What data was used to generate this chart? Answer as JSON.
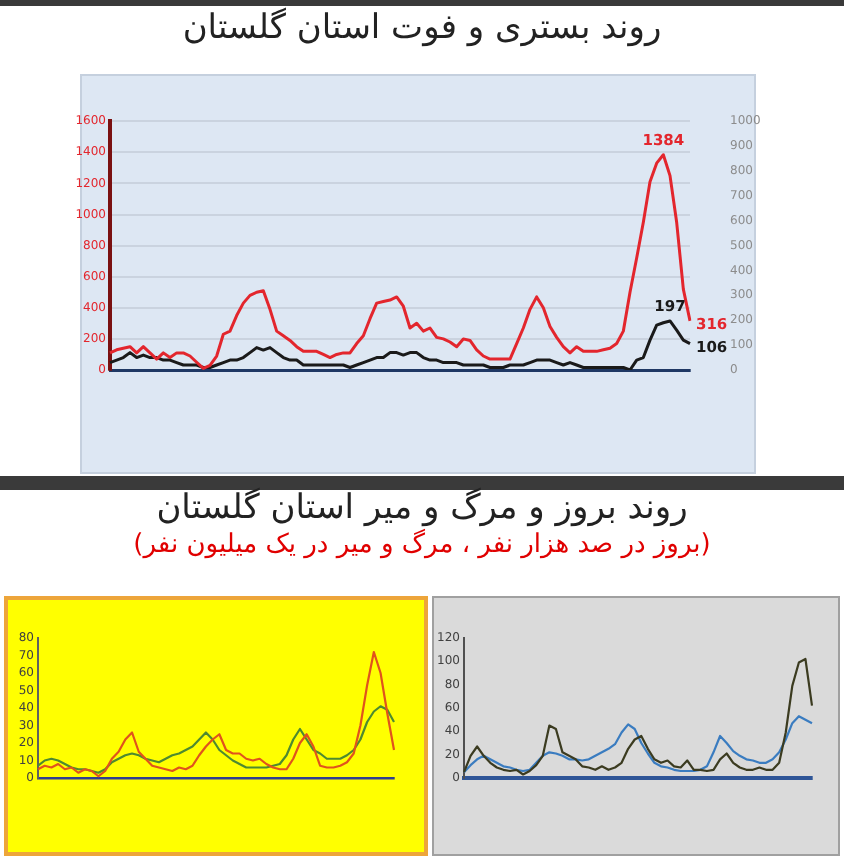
{
  "chart_data": [
    {
      "type": "line",
      "title": "روند بستری و فوت استان گلستان",
      "categories": [
        null,
        null,
        null,
        null,
        null,
        null,
        null,
        null,
        null,
        null,
        null,
        null,
        null,
        null,
        null,
        null,
        null,
        null,
        null,
        null,
        null,
        null,
        null,
        null,
        null,
        null,
        null,
        null,
        null,
        null,
        null,
        null,
        null,
        null,
        null,
        null,
        null,
        null,
        null,
        null,
        null,
        null,
        null,
        null,
        null,
        null,
        null,
        null,
        null,
        null,
        null,
        null,
        null,
        null,
        null,
        null,
        null,
        null,
        null,
        null,
        null,
        null,
        null,
        null,
        null,
        null,
        null,
        null,
        null,
        null,
        null,
        null,
        null,
        null,
        null,
        null,
        null,
        null,
        null,
        null,
        null,
        null,
        null,
        null,
        null,
        null,
        null,
        null
      ],
      "series": [
        {
          "color": "#e3262d",
          "values": [
            110,
            130,
            140,
            150,
            110,
            150,
            110,
            70,
            110,
            80,
            110,
            110,
            90,
            50,
            10,
            30,
            90,
            230,
            250,
            350,
            430,
            480,
            500,
            510,
            390,
            250,
            220,
            190,
            150,
            120,
            120,
            120,
            100,
            80,
            100,
            110,
            110,
            170,
            220,
            330,
            430,
            440,
            450,
            470,
            410,
            270,
            300,
            250,
            270,
            210,
            200,
            180,
            150,
            200,
            190,
            130,
            90,
            70,
            70,
            70,
            70,
            170,
            270,
            390,
            470,
            400,
            280,
            210,
            150,
            110,
            150,
            120,
            120,
            120,
            130,
            140,
            170,
            250,
            500,
            720,
            950,
            1210,
            1330,
            1384,
            1250,
            950,
            520,
            316
          ],
          "value_labels": [
            null,
            null,
            null,
            null,
            null,
            null,
            null,
            null,
            null,
            null,
            null,
            null,
            null,
            null,
            null,
            null,
            null,
            null,
            null,
            null,
            null,
            null,
            null,
            null,
            null,
            null,
            null,
            null,
            null,
            null,
            null,
            null,
            null,
            null,
            null,
            null,
            null,
            null,
            null,
            null,
            null,
            null,
            null,
            null,
            null,
            null,
            null,
            null,
            null,
            null,
            null,
            null,
            null,
            null,
            null,
            null,
            null,
            null,
            null,
            null,
            null,
            null,
            null,
            null,
            null,
            null,
            null,
            null,
            null,
            null,
            null,
            null,
            null,
            null,
            null,
            null,
            null,
            null,
            null,
            null,
            null,
            null,
            null,
            "1384",
            null,
            null,
            null,
            "316"
          ]
        },
        {
          "color": "#1a1a1a",
          "axis": "y2",
          "values": [
            30,
            40,
            50,
            70,
            50,
            60,
            50,
            50,
            40,
            40,
            30,
            20,
            20,
            20,
            10,
            10,
            20,
            30,
            40,
            40,
            50,
            70,
            90,
            80,
            90,
            70,
            50,
            40,
            40,
            20,
            20,
            20,
            20,
            20,
            20,
            20,
            10,
            20,
            30,
            40,
            50,
            50,
            70,
            70,
            60,
            70,
            70,
            50,
            40,
            40,
            30,
            30,
            30,
            20,
            20,
            20,
            20,
            10,
            10,
            10,
            20,
            20,
            20,
            30,
            40,
            40,
            40,
            30,
            20,
            30,
            20,
            10,
            10,
            10,
            10,
            10,
            10,
            10,
            0,
            40,
            50,
            120,
            180,
            190,
            197,
            160,
            120,
            106
          ],
          "value_labels": [
            null,
            null,
            null,
            null,
            null,
            null,
            null,
            null,
            null,
            null,
            null,
            null,
            null,
            null,
            null,
            null,
            null,
            null,
            null,
            null,
            null,
            null,
            null,
            null,
            null,
            null,
            null,
            null,
            null,
            null,
            null,
            null,
            null,
            null,
            null,
            null,
            null,
            null,
            null,
            null,
            null,
            null,
            null,
            null,
            null,
            null,
            null,
            null,
            null,
            null,
            null,
            null,
            null,
            null,
            null,
            null,
            null,
            null,
            null,
            null,
            null,
            null,
            null,
            null,
            null,
            null,
            null,
            null,
            null,
            null,
            null,
            null,
            null,
            null,
            null,
            null,
            null,
            null,
            null,
            null,
            null,
            null,
            null,
            null,
            "197",
            null,
            null,
            "106"
          ]
        }
      ],
      "ylim": [
        0,
        1600
      ],
      "yticks": [
        0,
        200,
        400,
        600,
        800,
        1000,
        1200,
        1400,
        1600
      ],
      "y2lim": [
        0,
        1000
      ],
      "y2ticks": [
        0,
        100,
        200,
        300,
        400,
        500,
        600,
        700,
        800,
        900,
        1000
      ],
      "grid": "y"
    },
    {
      "type": "line",
      "title": "روند بروز و مرگ و میر استان گلستان",
      "subtitle": "(بروز در صد هزار نفر ، مرگ و میر در یک میلیون نفر)",
      "categories": [
        null,
        null,
        null,
        null,
        null,
        null,
        null,
        null,
        null,
        null,
        null,
        null,
        null,
        null,
        null,
        null,
        null,
        null,
        null,
        null,
        null,
        null,
        null,
        null,
        null,
        null,
        null,
        null,
        null,
        null,
        null,
        null,
        null,
        null,
        null,
        null,
        null,
        null,
        null,
        null,
        null,
        null,
        null,
        null,
        null,
        null,
        null,
        null,
        null,
        null,
        null,
        null,
        null,
        null
      ],
      "series": [
        {
          "color": "#e0531c",
          "values": [
            5,
            7,
            6,
            8,
            5,
            6,
            3,
            5,
            4,
            1,
            4,
            11,
            15,
            22,
            26,
            15,
            11,
            7,
            6,
            5,
            4,
            6,
            5,
            7,
            13,
            18,
            22,
            25,
            16,
            14,
            14,
            11,
            10,
            11,
            8,
            6,
            5,
            5,
            11,
            20,
            25,
            18,
            7,
            6,
            6,
            7,
            9,
            14,
            30,
            53,
            72,
            60,
            37,
            16
          ]
        },
        {
          "color": "#4e8a30",
          "values": [
            7,
            10,
            11,
            10,
            8,
            6,
            5,
            5,
            4,
            3,
            5,
            9,
            11,
            13,
            14,
            13,
            11,
            10,
            9,
            11,
            13,
            14,
            16,
            18,
            22,
            26,
            22,
            16,
            13,
            10,
            8,
            6,
            6,
            6,
            6,
            7,
            8,
            13,
            22,
            28,
            22,
            16,
            14,
            11,
            11,
            11,
            13,
            16,
            22,
            32,
            38,
            41,
            39,
            32
          ]
        }
      ],
      "ylim": [
        0,
        80
      ],
      "yticks": [
        0,
        10,
        20,
        30,
        40,
        50,
        60,
        70,
        80
      ]
    },
    {
      "type": "line",
      "categories": [
        null,
        null,
        null,
        null,
        null,
        null,
        null,
        null,
        null,
        null,
        null,
        null,
        null,
        null,
        null,
        null,
        null,
        null,
        null,
        null,
        null,
        null,
        null,
        null,
        null,
        null,
        null,
        null,
        null,
        null,
        null,
        null,
        null,
        null,
        null,
        null,
        null,
        null,
        null,
        null,
        null,
        null,
        null,
        null,
        null,
        null,
        null,
        null,
        null,
        null,
        null,
        null,
        null,
        null
      ],
      "series": [
        {
          "color": "#3b3b20",
          "values": [
            5,
            19,
            27,
            19,
            13,
            9,
            7,
            6,
            7,
            3,
            6,
            11,
            19,
            45,
            42,
            22,
            19,
            16,
            10,
            9,
            7,
            10,
            7,
            9,
            13,
            25,
            33,
            36,
            25,
            16,
            13,
            15,
            10,
            9,
            15,
            7,
            7,
            6,
            7,
            16,
            21,
            13,
            9,
            7,
            7,
            9,
            7,
            7,
            13,
            39,
            79,
            99,
            102,
            62
          ]
        },
        {
          "color": "#3a7cc0",
          "values": [
            5,
            11,
            16,
            19,
            16,
            13,
            10,
            9,
            7,
            6,
            7,
            13,
            19,
            22,
            21,
            19,
            16,
            16,
            15,
            16,
            19,
            22,
            25,
            29,
            39,
            46,
            42,
            30,
            21,
            13,
            10,
            9,
            7,
            6,
            6,
            6,
            7,
            10,
            22,
            36,
            30,
            23,
            19,
            16,
            15,
            13,
            13,
            16,
            22,
            33,
            47,
            53,
            50,
            47
          ]
        }
      ],
      "ylim": [
        0,
        120
      ],
      "yticks": [
        0,
        20,
        40,
        60,
        80,
        100,
        120
      ]
    }
  ]
}
